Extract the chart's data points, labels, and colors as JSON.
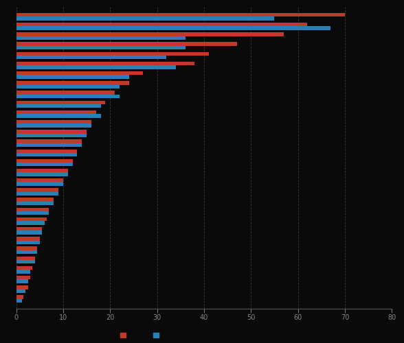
{
  "red_values": [
    70,
    62,
    57,
    47,
    41,
    38,
    27,
    24,
    21,
    19,
    17,
    16,
    15,
    14,
    13,
    12,
    11,
    10,
    9,
    8,
    7,
    6.5,
    5.5,
    5,
    4.5,
    4,
    3.5,
    3,
    2.5,
    1.5
  ],
  "blue_values": [
    55,
    67,
    36,
    36,
    32,
    34,
    24,
    22,
    22,
    18,
    18,
    16,
    15,
    14,
    13,
    12,
    11,
    10,
    9,
    8,
    7,
    6,
    5.5,
    5,
    4.5,
    4,
    3,
    2.5,
    2,
    1.2
  ],
  "red_color": "#c0392b",
  "blue_color": "#2980b9",
  "bg_color": "#0a0a0a",
  "bar_height": 0.38,
  "xlim": [
    0,
    80
  ],
  "grid_color": "#3a3a3a",
  "n_rows": 30
}
